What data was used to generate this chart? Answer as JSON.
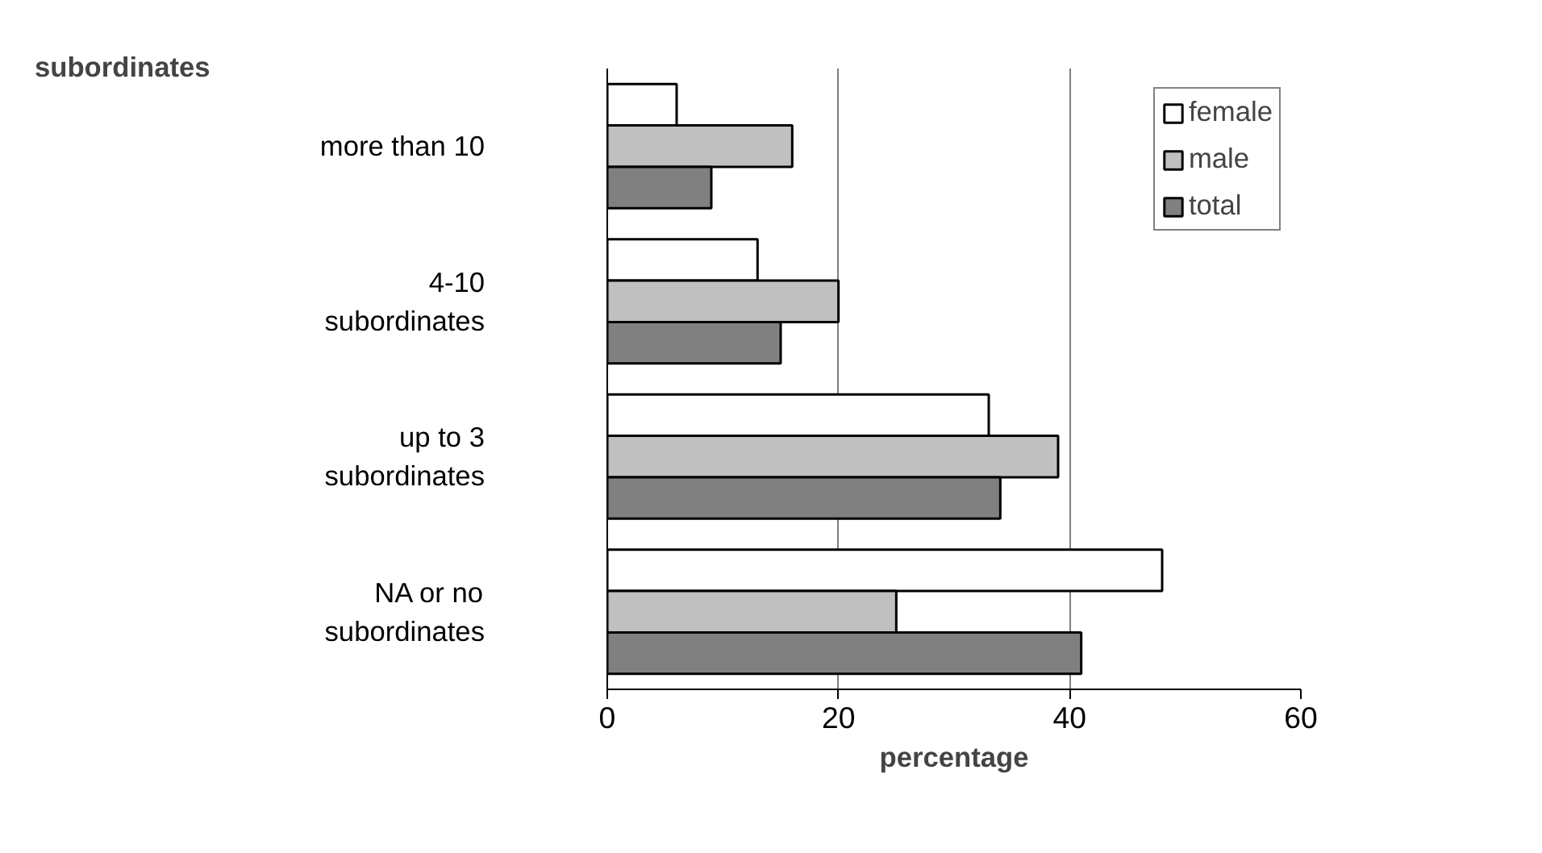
{
  "chart_data": {
    "type": "bar",
    "orientation": "horizontal",
    "ylabel": "subordinates",
    "xlabel": "percentage",
    "categories": [
      "more than 10",
      "4-10\nsubordinates",
      "up to 3\nsubordinates",
      "NA or no\nsubordinates"
    ],
    "series": [
      {
        "name": "female",
        "color": "#ffffff",
        "values": [
          6,
          13,
          33,
          48
        ]
      },
      {
        "name": "male",
        "color": "#c0c0c0",
        "values": [
          16,
          20,
          39,
          25
        ]
      },
      {
        "name": "total",
        "color": "#808080",
        "values": [
          9,
          15,
          34,
          41
        ]
      }
    ],
    "xlim": [
      0,
      60
    ],
    "xticks": [
      0,
      20,
      40,
      60
    ],
    "grid": "x",
    "legend": "top right"
  }
}
